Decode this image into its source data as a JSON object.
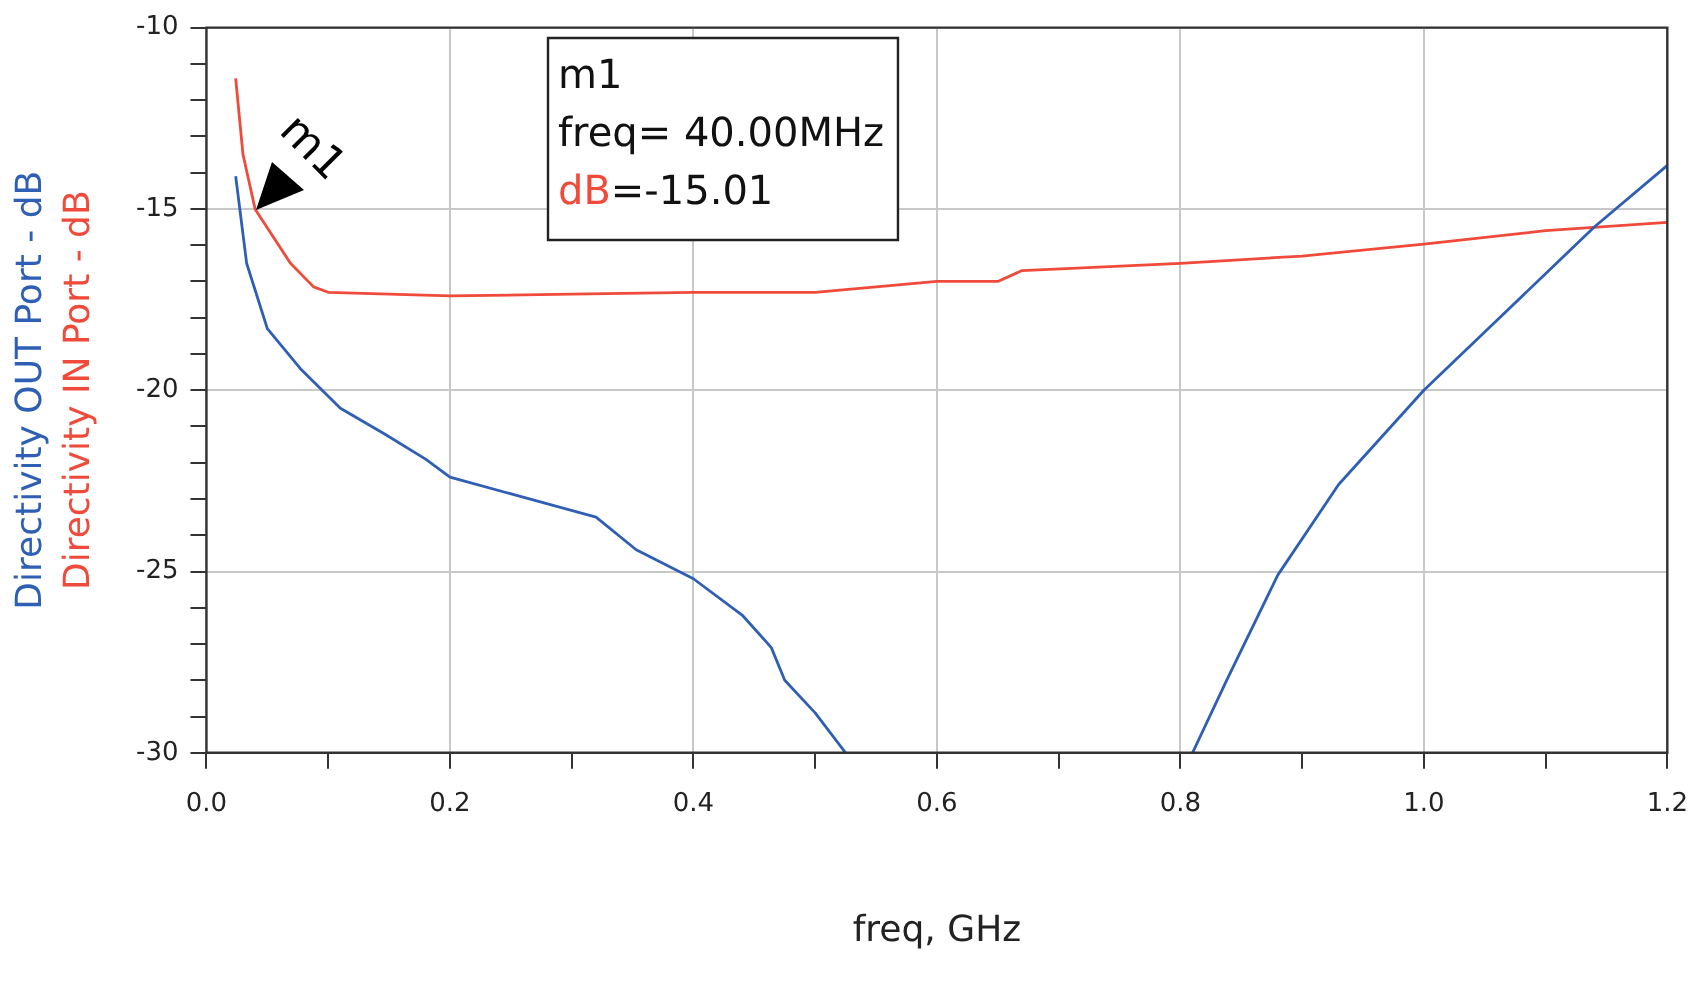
{
  "chart_data": {
    "type": "line",
    "xlabel": "freq, GHz",
    "xlim": [
      0,
      1.2
    ],
    "xticks": [
      {
        "value": 0,
        "label": "0.0"
      },
      {
        "value": 0.1,
        "label": null
      },
      {
        "value": 0.2,
        "label": "0.2"
      },
      {
        "value": 0.3,
        "label": null
      },
      {
        "value": 0.4,
        "label": "0.4"
      },
      {
        "value": 0.5,
        "label": null
      },
      {
        "value": 0.6,
        "label": "0.6"
      },
      {
        "value": 0.7,
        "label": null
      },
      {
        "value": 0.8,
        "label": "0.8"
      },
      {
        "value": 0.9,
        "label": null
      },
      {
        "value": 1.0,
        "label": "1.0"
      },
      {
        "value": 1.1,
        "label": null
      },
      {
        "value": 1.2,
        "label": "1.2"
      }
    ],
    "ylim": [
      -30,
      -10
    ],
    "yticks": [
      -30,
      {
        "value": -29,
        "label": null
      },
      {
        "value": -28,
        "label": null
      },
      {
        "value": -27,
        "label": null
      },
      {
        "value": -26,
        "label": null
      },
      -25,
      {
        "value": -24,
        "label": null
      },
      {
        "value": -23,
        "label": null
      },
      {
        "value": -22,
        "label": null
      },
      {
        "value": -21,
        "label": null
      },
      -20,
      {
        "value": -19,
        "label": null
      },
      {
        "value": -18,
        "label": null
      },
      {
        "value": -17,
        "label": null
      },
      {
        "value": -16,
        "label": null
      },
      -15,
      {
        "value": -14,
        "label": null
      },
      {
        "value": -13,
        "label": null
      },
      {
        "value": -12,
        "label": null
      },
      {
        "value": -11,
        "label": null
      },
      -10
    ],
    "grid": true,
    "marker": "none",
    "line_style": "solid",
    "series": [
      {
        "name": "Directivity OUT Port - dB",
        "color": "#2f5fb5",
        "x": [
          0.024,
          0.033,
          0.05,
          0.077,
          0.11,
          0.146,
          0.18,
          0.2,
          0.26,
          0.32,
          0.353,
          0.4,
          0.44,
          0.464,
          0.475,
          0.5,
          0.525,
          0.67,
          0.81,
          0.838,
          0.88,
          0.93,
          1.0,
          1.053,
          1.14,
          1.2
        ],
        "values": [
          -14.1,
          -16.5,
          -18.3,
          -19.4,
          -20.5,
          -21.2,
          -21.9,
          -22.4,
          -22.95,
          -23.5,
          -24.4,
          -25.2,
          -26.2,
          -27.1,
          -28.0,
          -28.9,
          -30,
          null,
          -30,
          -28.0,
          -25.1,
          -22.6,
          -20.0,
          -18.3,
          -15.5,
          -13.8
        ]
      },
      {
        "name": "Directivity IN Port - dB",
        "color": "#f04a3a",
        "x": [
          0.024,
          0.03,
          0.04,
          0.069,
          0.088,
          0.1,
          0.2,
          0.3,
          0.4,
          0.5,
          0.6,
          0.65,
          0.67,
          0.8,
          0.9,
          1.0,
          1.1,
          1.2
        ],
        "values": [
          -11.4,
          -13.5,
          -15.01,
          -16.5,
          -17.15,
          -17.3,
          -17.4,
          -17.35,
          -17.3,
          -17.3,
          -17.0,
          -17.0,
          -16.7,
          -16.5,
          -16.3,
          -15.97,
          -15.6,
          -15.37
        ]
      }
    ],
    "annotations": [
      {
        "text": "m1",
        "x": 0.04,
        "y": -15.01
      },
      "m1",
      "freq= 40.00MHz",
      "dB=-15.01"
    ]
  }
}
